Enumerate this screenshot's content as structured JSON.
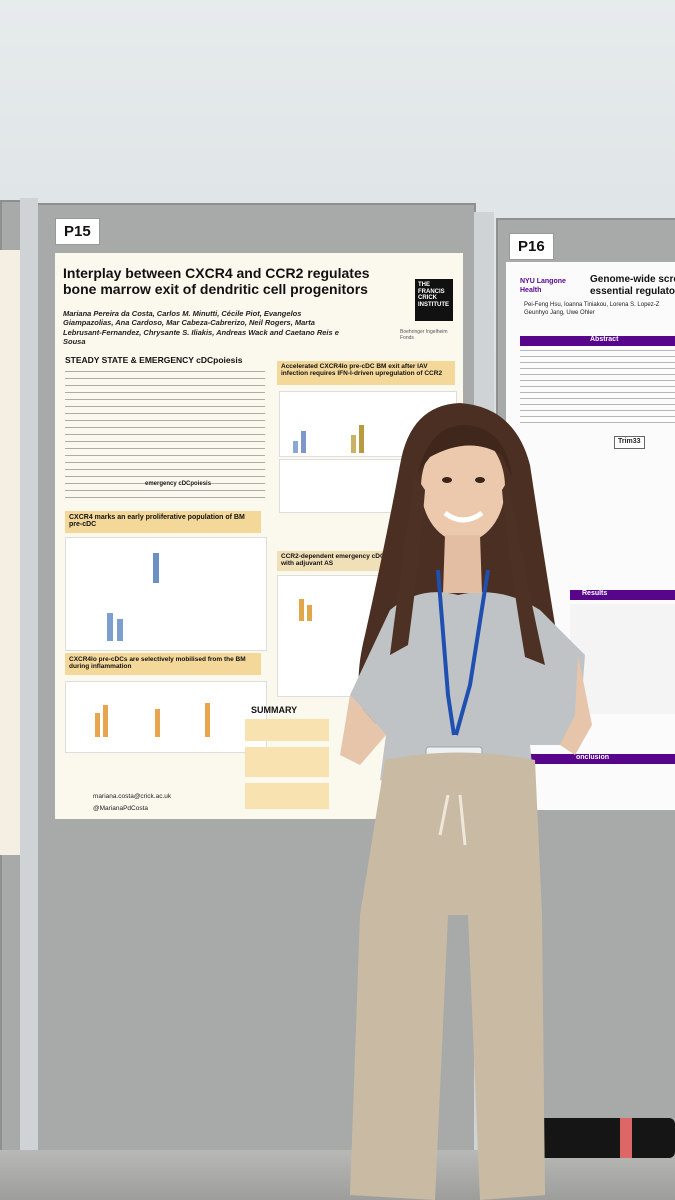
{
  "left_poster": {
    "number": "P15",
    "title": "Interplay between CXCR4 and CCR2 regulates bone marrow exit of dendritic cell progenitors",
    "authors": "Mariana Pereira da Costa, Carlos M. Minutti, Cécile Piot, Evangelos Giampazolias, Ana Cardoso, Mar Cabeza-Cabrerizo, Neil Rogers, Marta Lebrusant-Fernandez, Chrysante S. Iliakis, Andreas Wack and Caetano Reis e Sousa",
    "institute_logo": "THE FRANCIS CRICK INSTITUTE",
    "funder_logo": "Boehringer Ingelheim Fonds",
    "section_steady": "STEADY STATE & EMERGENCY cDCpoiesis",
    "section_accel": "Accelerated CXCR4lo pre-cDC BM exit after IAV infection requires IFN-I-driven upregulation of CCR2",
    "section_marks": "CXCR4 marks an early proliferative population of BM pre-cDC",
    "section_ccr2": "CCR2-dependent emergency cDCpoiesis vaccination with adjuvant AS",
    "section_mobilised": "CXCR4lo pre-cDCs are selectively mobilised from the BM during inflammation",
    "section_summary": "SUMMARY",
    "emphasis": "emergency cDCpoiesis",
    "email": "mariana.costa@crick.ac.uk",
    "handle": "@MarianaPdCosta"
  },
  "right_poster": {
    "number": "P16",
    "title": "Genome-wide scre essential regulator",
    "institution": "NYU Langone Health",
    "authors": "Pei-Feng Hsu, Ioanna Tiniakou, Lorena S. Lopez-Z Geunhyo Jang, Uwe Ohler",
    "abstract_header": "Abstract",
    "results_header": "Results",
    "conclusion_header": "onclusion",
    "gene_label": "Trim33"
  },
  "colors": {
    "poster_bg": "#fbf8ee",
    "accent_yellow": "#f4d89a",
    "board_grey": "#a7aaa8",
    "nyu_purple": "#57068c"
  }
}
